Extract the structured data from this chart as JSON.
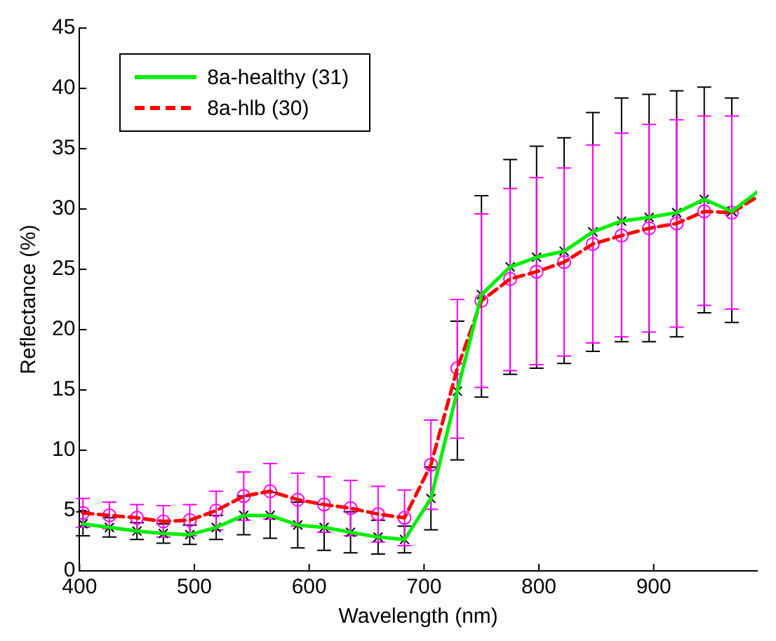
{
  "chart_data": {
    "type": "line",
    "xlabel": "Wavelength (nm)",
    "ylabel": "Reflectance (%)",
    "xlim": [
      400,
      990
    ],
    "xticks": [
      400,
      500,
      600,
      700,
      800,
      900
    ],
    "ylim": [
      0,
      45
    ],
    "yticks": [
      0,
      5,
      10,
      15,
      20,
      25,
      30,
      35,
      40,
      45
    ],
    "grid": false,
    "legend": "top left",
    "series": [
      {
        "name": "8a-healthy (31)",
        "color": "#00ee00",
        "line_style": "solid",
        "marker": "none",
        "x": [
          403,
          426,
          450,
          473,
          496,
          519,
          543,
          566,
          590,
          613,
          636,
          660,
          683,
          706,
          729,
          750,
          775,
          798,
          822,
          847,
          872,
          896,
          920,
          944,
          968,
          990
        ],
        "values": [
          3.9,
          3.6,
          3.3,
          3.1,
          3.0,
          3.6,
          4.6,
          4.6,
          3.8,
          3.6,
          3.2,
          2.8,
          2.6,
          6.0,
          14.9,
          22.9,
          25.2,
          26.0,
          26.5,
          28.1,
          29.0,
          29.3,
          29.7,
          30.8,
          29.8,
          31.4
        ]
      },
      {
        "name": "8a-hlb (30)",
        "color": "#ff0000",
        "line_style": "dashed",
        "marker": "none",
        "x": [
          403,
          426,
          450,
          473,
          496,
          519,
          543,
          566,
          590,
          613,
          636,
          660,
          683,
          706,
          729,
          750,
          775,
          798,
          822,
          847,
          872,
          896,
          920,
          944,
          968,
          990
        ],
        "values": [
          4.8,
          4.6,
          4.4,
          4.1,
          4.2,
          5.0,
          6.2,
          6.6,
          5.9,
          5.5,
          5.2,
          4.7,
          4.4,
          8.8,
          16.8,
          22.4,
          24.2,
          24.8,
          25.6,
          27.1,
          27.8,
          28.4,
          28.8,
          29.8,
          29.7,
          31.0
        ]
      },
      {
        "type": "scatter",
        "color": "#000000",
        "marker": "cross",
        "x": [
          403,
          426,
          450,
          473,
          496,
          519,
          543,
          566,
          590,
          613,
          636,
          660,
          683,
          706,
          729,
          750,
          775,
          798,
          822,
          847,
          872,
          896,
          920,
          944,
          968
        ],
        "values": [
          3.9,
          3.6,
          3.3,
          3.1,
          3.0,
          3.6,
          4.6,
          4.6,
          3.8,
          3.6,
          3.2,
          2.8,
          2.6,
          6.0,
          14.9,
          22.9,
          25.2,
          26.0,
          26.5,
          28.1,
          29.0,
          29.3,
          29.7,
          30.8,
          29.8
        ],
        "errors": [
          1.0,
          0.8,
          0.7,
          0.8,
          0.8,
          1.0,
          1.6,
          1.9,
          1.9,
          1.9,
          1.7,
          1.4,
          1.1,
          2.6,
          [
            9.2,
            20.7
          ],
          [
            14.4,
            31.1
          ],
          [
            16.3,
            34.1
          ],
          [
            16.8,
            35.2
          ],
          [
            17.2,
            35.9
          ],
          [
            18.2,
            38.0
          ],
          [
            19.0,
            39.2
          ],
          [
            19.0,
            39.5
          ],
          [
            19.4,
            39.8
          ],
          [
            21.4,
            40.1
          ],
          [
            20.6,
            39.2
          ]
        ]
      },
      {
        "type": "scatter",
        "color": "#ff00ff",
        "marker": "circle",
        "x": [
          403,
          426,
          450,
          473,
          496,
          519,
          543,
          566,
          590,
          613,
          636,
          660,
          683,
          706,
          729,
          750,
          775,
          798,
          822,
          847,
          872,
          896,
          920,
          944,
          968
        ],
        "values": [
          4.8,
          4.6,
          4.4,
          4.1,
          4.2,
          5.0,
          6.2,
          6.6,
          5.9,
          5.5,
          5.2,
          4.7,
          4.4,
          8.8,
          16.8,
          22.4,
          24.2,
          24.8,
          25.6,
          27.1,
          27.8,
          28.4,
          28.8,
          29.8,
          29.7
        ],
        "errors": [
          1.2,
          1.1,
          1.1,
          1.3,
          1.3,
          1.6,
          2.0,
          2.3,
          2.2,
          2.3,
          2.3,
          2.3,
          2.3,
          [
            5.1,
            12.5
          ],
          [
            11.0,
            22.5
          ],
          [
            15.2,
            29.6
          ],
          [
            16.6,
            31.7
          ],
          [
            17.1,
            32.6
          ],
          [
            17.8,
            33.4
          ],
          [
            18.9,
            35.3
          ],
          [
            19.4,
            36.3
          ],
          [
            19.8,
            37.0
          ],
          [
            20.2,
            37.4
          ],
          [
            22.0,
            37.7
          ],
          [
            21.7,
            37.7
          ]
        ]
      }
    ]
  }
}
